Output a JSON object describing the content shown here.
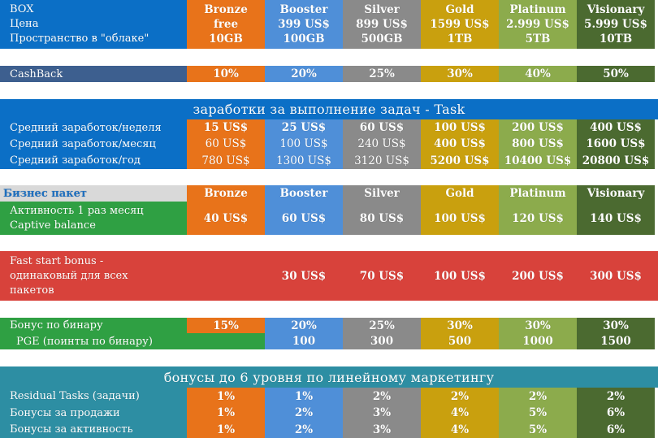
{
  "tiers": [
    "Bronze",
    "Booster",
    "Silver",
    "Gold",
    "Platinum",
    "Visionary"
  ],
  "box": {
    "label_box": "BOX",
    "label_price": "Цена",
    "label_cloud": "Пространство в \"облаке\"",
    "price": [
      "free",
      "399 US$",
      "899 US$",
      "1599 US$",
      "2.999 US$",
      "5.999 US$"
    ],
    "cloud": [
      "10GB",
      "100GB",
      "500GB",
      "1TB",
      "5TB",
      "10TB"
    ]
  },
  "cashback": {
    "label": "CashBack",
    "values": [
      "10%",
      "20%",
      "25%",
      "30%",
      "40%",
      "50%"
    ]
  },
  "tasks": {
    "title": "заработки за выполнение задач - Task",
    "rows": [
      {
        "label": "Средний заработок/неделя",
        "values": [
          "15 US$",
          "25 US$",
          "60 US$",
          "100 US$",
          "200 US$",
          "400 US$"
        ]
      },
      {
        "label": "Средний заработок/месяц",
        "values": [
          "60 US$",
          "100 US$",
          "240 US$",
          "400 US$",
          "800 US$",
          "1600 US$"
        ]
      },
      {
        "label": "Средний заработок/год",
        "values": [
          "780 US$",
          "1300 US$",
          "3120 US$",
          "5200 US$",
          "10400 US$",
          "20800 US$"
        ]
      }
    ]
  },
  "business": {
    "header_label": "Бизнес пакет",
    "activity_line1": "Активность 1 раз месяц",
    "activity_line2": "Captive balance",
    "values": [
      "40 US$",
      "60 US$",
      "80 US$",
      "100 US$",
      "120 US$",
      "140 US$"
    ]
  },
  "fast_start": {
    "line1": "Fast start bonus  -",
    "line2": "одинаковый для всех",
    "line3": "пакетов",
    "values": [
      "",
      "30 US$",
      "70 US$",
      "100 US$",
      "200 US$",
      "300 US$"
    ]
  },
  "binary": {
    "label": "Бонус по бинару",
    "values": [
      "15%",
      "20%",
      "25%",
      "30%",
      "30%",
      "30%"
    ],
    "pge_label": "PGE (поинты по бинару)",
    "pge_values": [
      "",
      "100",
      "300",
      "500",
      "1000",
      "1500"
    ]
  },
  "linear": {
    "title": "бонусы до 6 уровня по линейному маркетингу",
    "rows": [
      {
        "label": "Residual Tasks (задачи)",
        "values": [
          "1%",
          "1%",
          "2%",
          "2%",
          "2%",
          "2%"
        ]
      },
      {
        "label": "Бонусы за продажи",
        "values": [
          "1%",
          "2%",
          "3%",
          "4%",
          "5%",
          "6%"
        ]
      },
      {
        "label": "Бонусы за активность",
        "values": [
          "1%",
          "2%",
          "3%",
          "4%",
          "5%",
          "6%"
        ]
      }
    ]
  },
  "colors": {
    "bronze": "#e8731a",
    "booster": "#4f8fd8",
    "silver": "#8a8a8a",
    "gold": "#c9a00e",
    "platinum": "#8cab4c",
    "visionary": "#4b6a30",
    "header_blue": "#0b6fc6",
    "cashback_navy": "#3d5f8f",
    "green": "#2fa043",
    "red": "#d8423b",
    "teal": "#2d8ea3"
  }
}
